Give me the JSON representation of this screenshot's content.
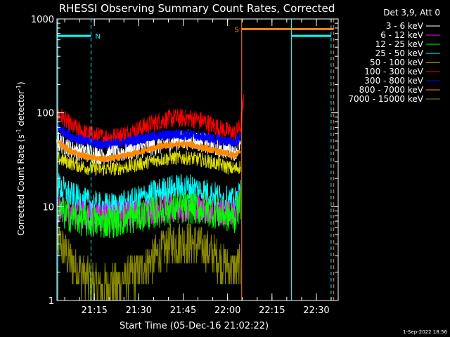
{
  "chart_data": {
    "type": "line",
    "title": "RHESSI Observing Summary Count Rates, Corrected",
    "xlabel": "Start Time (05-Dec-16 21:02:22)",
    "ylabel_main": "Corrected Count Rate (s",
    "ylabel_sup1": "-1",
    "ylabel_mid": " detector",
    "ylabel_sup2": "-1",
    "ylabel_end": ")",
    "yscale": "log",
    "ylim": [
      1,
      1000
    ],
    "xlim_minutes": [
      0,
      95
    ],
    "x_ticks": [
      {
        "minute": 12.63,
        "label": "21:15"
      },
      {
        "minute": 27.63,
        "label": "21:30"
      },
      {
        "minute": 42.63,
        "label": "21:45"
      },
      {
        "minute": 57.63,
        "label": "22:00"
      },
      {
        "minute": 72.63,
        "label": "22:15"
      },
      {
        "minute": 87.63,
        "label": "22:30"
      }
    ],
    "y_ticks": [
      {
        "value": 1,
        "label": "1"
      },
      {
        "value": 10,
        "label": "10"
      },
      {
        "value": 100,
        "label": "100"
      },
      {
        "value": 1000,
        "label": "1000"
      }
    ],
    "legend_header": "Det 3,9, Att 0",
    "legend_placement": "top-right, outside",
    "series": [
      {
        "name": "3 - 6 keV",
        "color": "#ffffff",
        "x": [
          0,
          5,
          10,
          15,
          20,
          25,
          30,
          35,
          40,
          45,
          50,
          55,
          60,
          62
        ],
        "y": [
          50,
          42,
          38,
          36,
          37,
          40,
          43,
          46,
          50,
          52,
          48,
          42,
          40,
          45
        ]
      },
      {
        "name": "6 - 12 keV",
        "color": "#ff00ff",
        "x": [
          0,
          5,
          10,
          15,
          20,
          25,
          30,
          35,
          40,
          45,
          50,
          55,
          60,
          62
        ],
        "y": [
          9.5,
          8.8,
          8.2,
          7.8,
          7.9,
          8.3,
          8.8,
          9.3,
          9.7,
          9.8,
          9.4,
          8.8,
          8.2,
          12
        ]
      },
      {
        "name": "12 - 25 keV",
        "color": "#00ff00",
        "x": [
          0,
          5,
          10,
          15,
          20,
          25,
          30,
          35,
          40,
          45,
          50,
          55,
          60,
          62
        ],
        "y": [
          9,
          7.8,
          7,
          6.8,
          7,
          7.6,
          8.3,
          9,
          9.5,
          9.7,
          9.3,
          8.4,
          7.6,
          11
        ]
      },
      {
        "name": "25 - 50 keV",
        "color": "#00ffff",
        "x": [
          0,
          5,
          10,
          15,
          20,
          25,
          30,
          35,
          40,
          45,
          50,
          55,
          60,
          62
        ],
        "y": [
          17,
          13,
          11,
          10,
          10.2,
          11,
          12.8,
          14.5,
          15.8,
          16,
          14.5,
          12.5,
          11,
          14
        ]
      },
      {
        "name": "50 - 100 keV",
        "color": "#dddd00",
        "x": [
          0,
          5,
          10,
          15,
          20,
          25,
          30,
          35,
          40,
          45,
          50,
          55,
          60,
          62
        ],
        "y": [
          33,
          29,
          26,
          25,
          25.5,
          27,
          29.5,
          32,
          33,
          33,
          31,
          28,
          25,
          27
        ]
      },
      {
        "name": "100 - 300 keV",
        "color": "#ff0000",
        "x": [
          0,
          5,
          10,
          15,
          20,
          25,
          30,
          35,
          40,
          45,
          50,
          55,
          60,
          62,
          63
        ],
        "y": [
          100,
          72,
          60,
          55,
          56,
          62,
          72,
          82,
          88,
          88,
          80,
          68,
          60,
          70,
          130
        ]
      },
      {
        "name": "300 - 800 keV",
        "color": "#0000ff",
        "x": [
          0,
          5,
          10,
          15,
          20,
          25,
          30,
          35,
          40,
          45,
          50,
          55,
          60,
          62
        ],
        "y": [
          70,
          56,
          49,
          46,
          47,
          50,
          54,
          57,
          59,
          58,
          55,
          51,
          48,
          55
        ]
      },
      {
        "name": "800 - 7000 keV",
        "color": "#ff8800",
        "x": [
          0,
          5,
          10,
          15,
          20,
          25,
          30,
          35,
          40,
          45,
          50,
          55,
          60,
          62
        ],
        "y": [
          50,
          38,
          34,
          32,
          33,
          36,
          40,
          44,
          46,
          46,
          42,
          38,
          35,
          38
        ]
      },
      {
        "name": "7000 - 15000 keV",
        "color": "#888800",
        "x": [
          0,
          5,
          10,
          15,
          20,
          25,
          30,
          35,
          40,
          45,
          50,
          55,
          60,
          62
        ],
        "y": [
          4.5,
          2.6,
          1.7,
          1.4,
          1.5,
          1.8,
          2.4,
          3.3,
          4.1,
          4.2,
          3.6,
          2.7,
          2.1,
          2.4
        ]
      }
    ],
    "annotations": [
      {
        "type": "bar",
        "label": "N",
        "color": "#00ffff",
        "x_start": 0,
        "x_end": 11.5,
        "value": 660,
        "vline_style": "dashed",
        "vline_at": 11.5
      },
      {
        "type": "bar",
        "label": "S",
        "color": "#ff8800",
        "x_start": 62.4,
        "x_end": 93.5,
        "value": 780,
        "vline_style": "solid",
        "vline_at": 62.4
      },
      {
        "type": "bar",
        "label": "",
        "color": "#00ffff",
        "x_start": 79.2,
        "x_end": 92.6,
        "value": 660,
        "vline_style": "solid",
        "vline_at": 79.2
      },
      {
        "type": "vline",
        "color": "#00ffff",
        "x": 92.6,
        "style": "dashed"
      },
      {
        "type": "vline",
        "color": "#ff8800",
        "x": 93.5,
        "style": "dashed"
      },
      {
        "type": "vline",
        "color": "#00ffff",
        "x": 0.3,
        "style": "solid"
      }
    ],
    "footer_date": "1-Sep-2022 18:56"
  }
}
